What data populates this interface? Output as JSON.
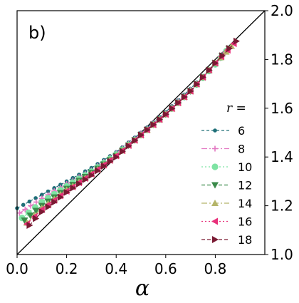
{
  "chart_data": {
    "type": "line",
    "panel_label": "b)",
    "xlabel": "α",
    "xlim": [
      0.0,
      1.0
    ],
    "ylim": [
      1.0,
      2.0
    ],
    "x_ticks": [
      "0.0",
      "0.2",
      "0.4",
      "0.6",
      "0.8"
    ],
    "x_tick_values": [
      0.0,
      0.2,
      0.4,
      0.6,
      0.8
    ],
    "y_ticks": [
      "1.0",
      "1.2",
      "1.4",
      "1.6",
      "1.8",
      "2.0"
    ],
    "y_tick_values": [
      1.0,
      1.2,
      1.4,
      1.6,
      1.8,
      2.0
    ],
    "y_axis_side": "right",
    "reference_line": {
      "x": [
        0.0,
        1.0
      ],
      "y": [
        1.0,
        2.0
      ],
      "color": "#000000"
    },
    "legend": {
      "title": "r =",
      "placement": "right"
    },
    "series": [
      {
        "name": "6",
        "color": "#1f6f78",
        "marker": "circle-small",
        "dash": "4,3",
        "x": [
          0.0,
          0.1,
          0.2,
          0.3,
          0.4,
          0.5,
          0.6,
          0.7,
          0.8,
          0.825
        ],
        "y": [
          1.19,
          1.245,
          1.3,
          1.355,
          1.42,
          1.5,
          1.585,
          1.68,
          1.785,
          1.82
        ]
      },
      {
        "name": "8",
        "color": "#e377c2",
        "marker": "plus",
        "dash": "8,3,2,3",
        "x": [
          0.01,
          0.1,
          0.2,
          0.3,
          0.4,
          0.5,
          0.6,
          0.7,
          0.8,
          0.84
        ],
        "y": [
          1.17,
          1.23,
          1.29,
          1.345,
          1.415,
          1.495,
          1.58,
          1.675,
          1.78,
          1.83
        ]
      },
      {
        "name": "10",
        "color": "#7ee3a3",
        "marker": "circle",
        "dash": "2,3",
        "x": [
          0.02,
          0.1,
          0.2,
          0.3,
          0.4,
          0.5,
          0.6,
          0.7,
          0.8,
          0.845
        ],
        "y": [
          1.15,
          1.215,
          1.28,
          1.34,
          1.41,
          1.49,
          1.575,
          1.67,
          1.78,
          1.835
        ]
      },
      {
        "name": "12",
        "color": "#3a8a4a",
        "marker": "triangle-down",
        "dash": "5,3",
        "x": [
          0.03,
          0.1,
          0.2,
          0.3,
          0.4,
          0.5,
          0.6,
          0.7,
          0.8,
          0.855
        ],
        "y": [
          1.14,
          1.2,
          1.27,
          1.335,
          1.405,
          1.49,
          1.575,
          1.67,
          1.785,
          1.845
        ]
      },
      {
        "name": "14",
        "color": "#b5b56a",
        "marker": "triangle-up",
        "dash": "8,3,2,3",
        "x": [
          0.04,
          0.1,
          0.2,
          0.3,
          0.4,
          0.5,
          0.6,
          0.7,
          0.8,
          0.865
        ],
        "y": [
          1.13,
          1.19,
          1.265,
          1.33,
          1.405,
          1.49,
          1.575,
          1.67,
          1.785,
          1.855
        ]
      },
      {
        "name": "16",
        "color": "#e8307a",
        "marker": "triangle-left",
        "dash": "2,3",
        "x": [
          0.04,
          0.1,
          0.2,
          0.3,
          0.4,
          0.5,
          0.6,
          0.7,
          0.8,
          0.875
        ],
        "y": [
          1.125,
          1.185,
          1.26,
          1.33,
          1.405,
          1.49,
          1.575,
          1.67,
          1.785,
          1.865
        ]
      },
      {
        "name": "18",
        "color": "#7a1a33",
        "marker": "triangle-right",
        "dash": "5,3",
        "x": [
          0.05,
          0.1,
          0.2,
          0.3,
          0.4,
          0.5,
          0.6,
          0.7,
          0.8,
          0.885
        ],
        "y": [
          1.12,
          1.175,
          1.255,
          1.325,
          1.4,
          1.49,
          1.575,
          1.67,
          1.785,
          1.875
        ]
      }
    ]
  }
}
